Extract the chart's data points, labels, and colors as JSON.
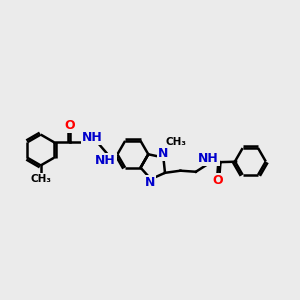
{
  "background_color": "#ebebeb",
  "bond_color": "#000000",
  "N_color": "#0000cc",
  "O_color": "#ff0000",
  "C_color": "#000000",
  "bond_lw": 1.8,
  "font_size": 9,
  "xlim": [
    0,
    14
  ],
  "ylim": [
    2,
    9
  ]
}
